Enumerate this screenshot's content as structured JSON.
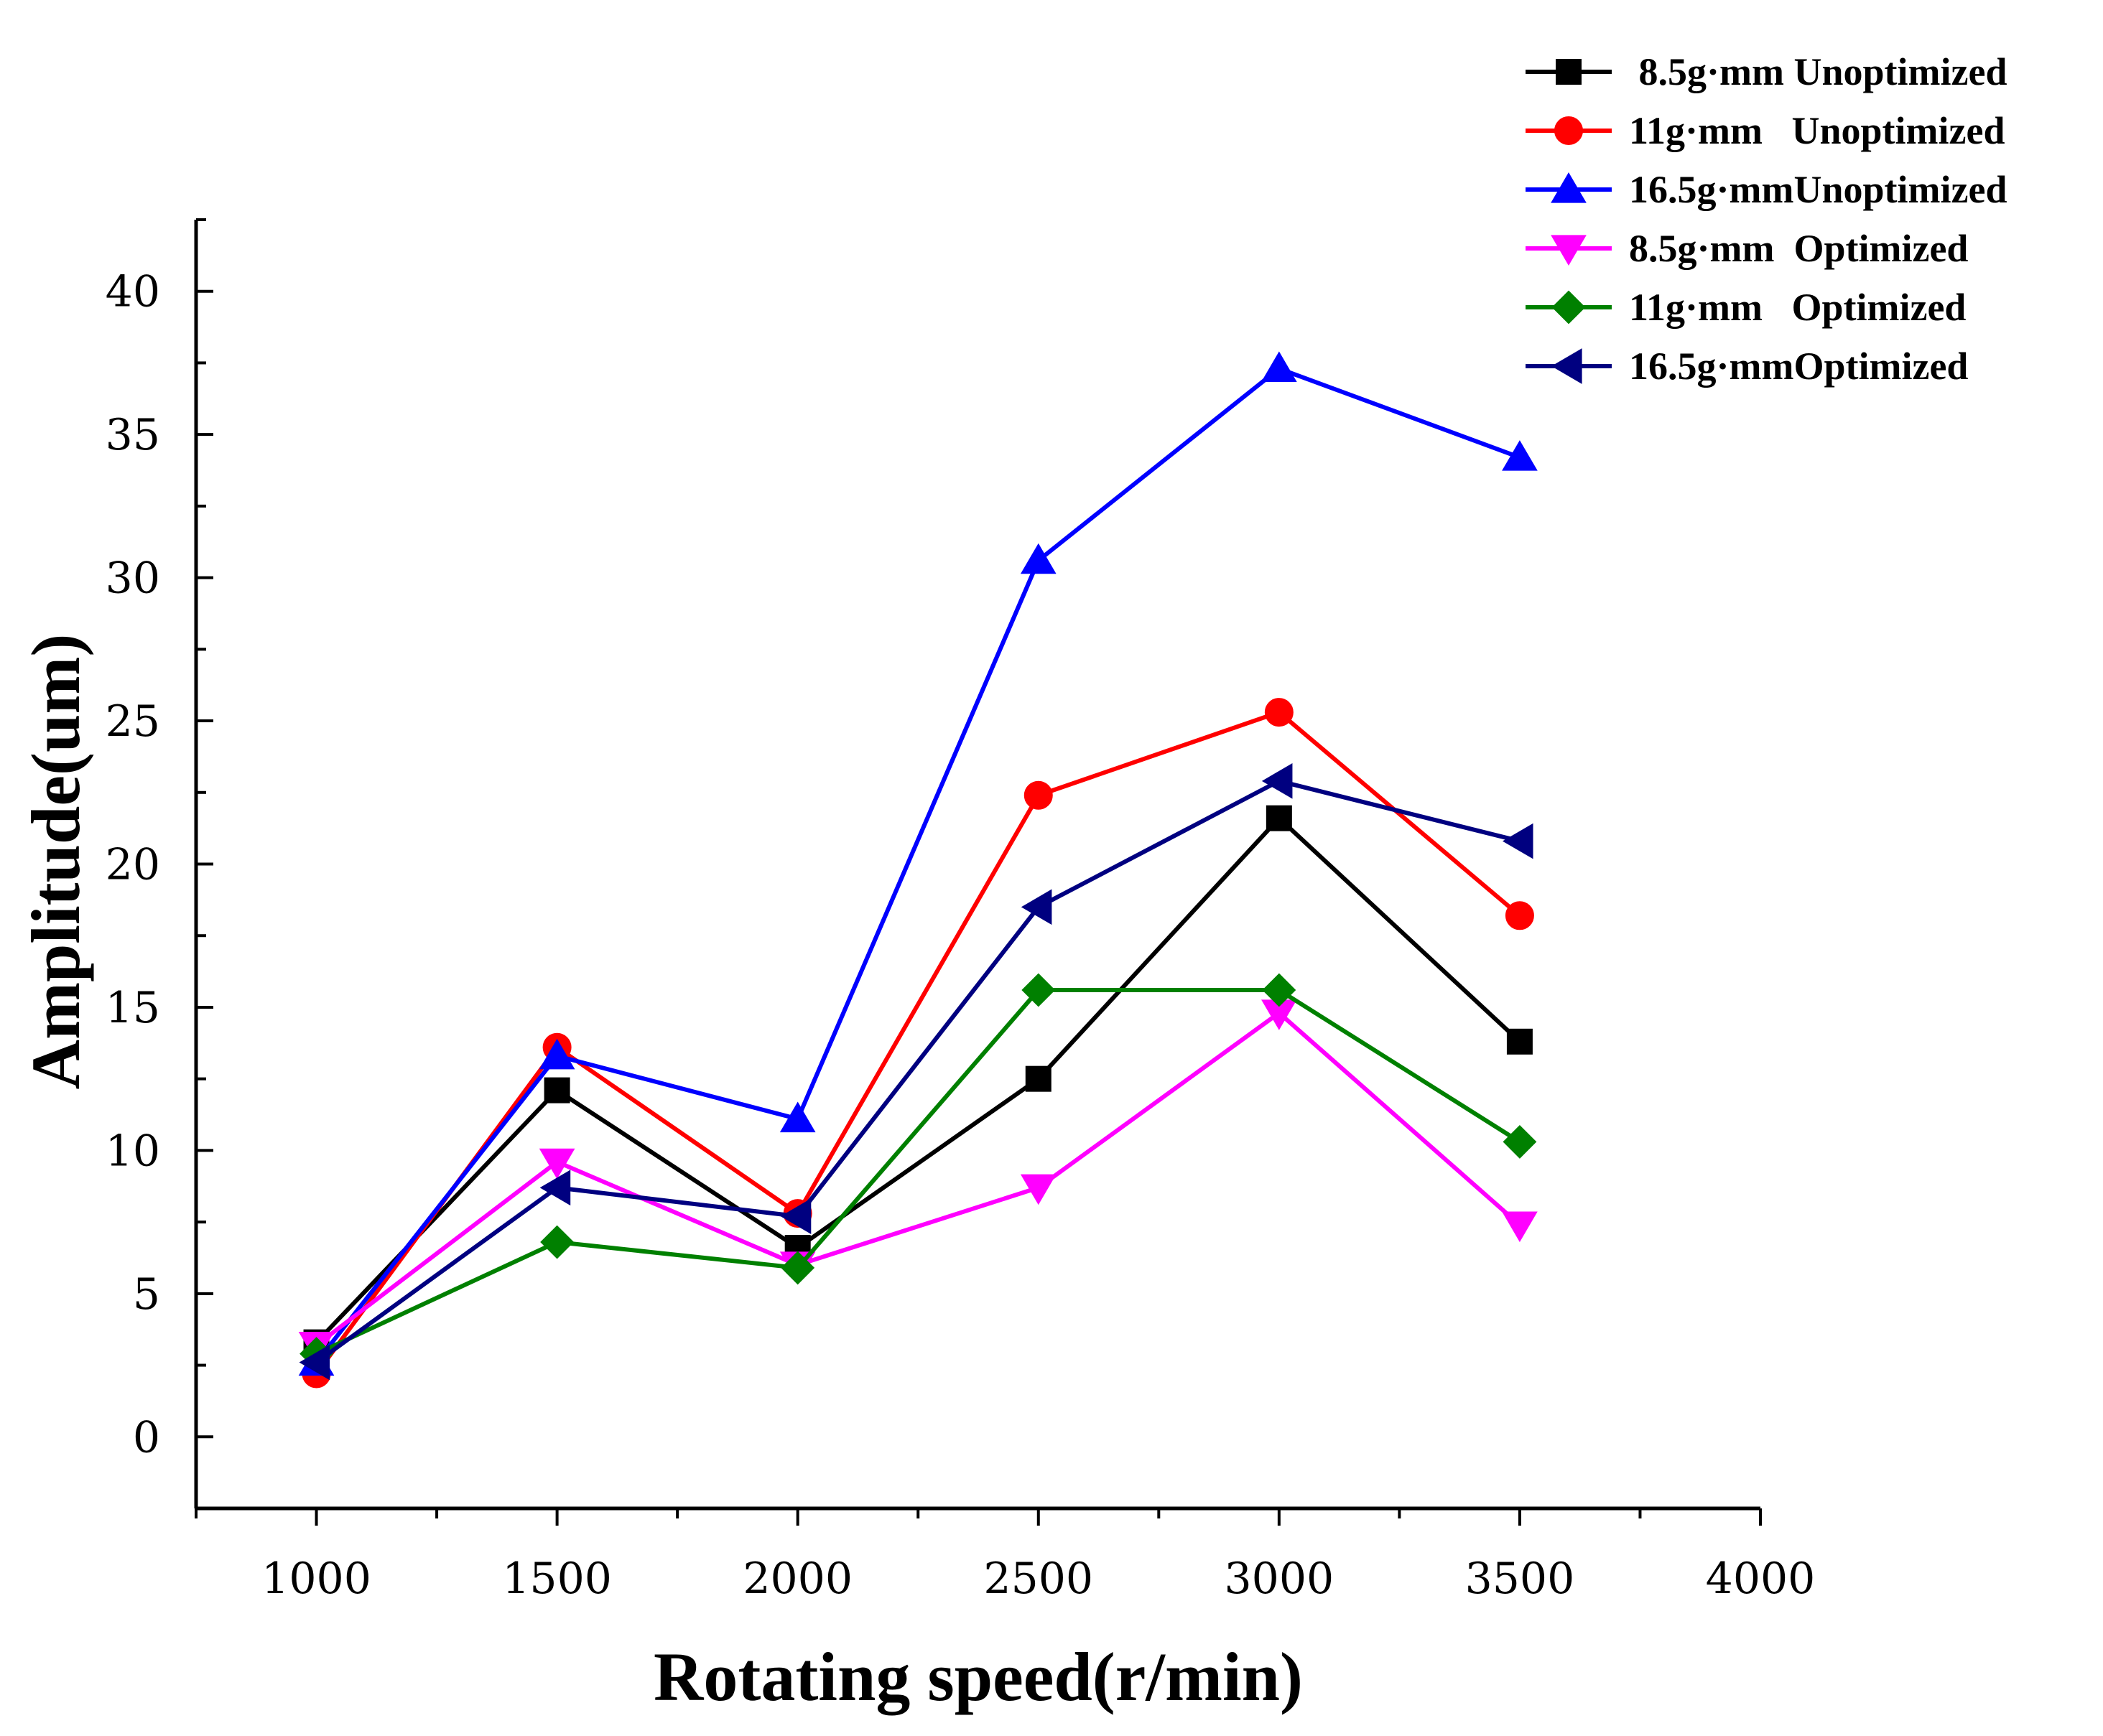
{
  "chart_data": {
    "type": "line",
    "title": "",
    "xlabel": "Rotating speed(r/min)",
    "ylabel": "Amplitude(um)",
    "xlim": [
      750,
      4000
    ],
    "ylim": [
      -2.5,
      42.5
    ],
    "xticks": [
      1000,
      1500,
      2000,
      2500,
      3000,
      3500,
      4000
    ],
    "yticks": [
      0,
      5,
      10,
      15,
      20,
      25,
      30,
      35,
      40
    ],
    "grid": false,
    "legend_position": "top-right",
    "x": [
      1000,
      1500,
      2000,
      2500,
      3000,
      3500
    ],
    "series": [
      {
        "name": " 8.5g·mm Unoptimized",
        "color": "#000000",
        "marker": "square",
        "values": [
          3.3,
          12.1,
          6.6,
          12.5,
          21.6,
          13.8
        ]
      },
      {
        "name": "11g·mm   Unoptimized",
        "color": "#ff0000",
        "marker": "circle",
        "values": [
          2.2,
          13.6,
          7.8,
          22.4,
          25.3,
          18.2
        ]
      },
      {
        "name": "16.5g·mmUnoptimized",
        "color": "#0000ff",
        "marker": "triangle-up",
        "values": [
          2.6,
          13.3,
          11.1,
          30.6,
          37.3,
          34.2
        ]
      },
      {
        "name": "8.5g·mm  Optimized",
        "color": "#ff00ff",
        "marker": "triangle-down",
        "values": [
          3.2,
          9.6,
          6.0,
          8.7,
          14.8,
          7.4
        ]
      },
      {
        "name": "11g·mm   Optimized",
        "color": "#008000",
        "marker": "diamond",
        "values": [
          2.9,
          6.8,
          5.9,
          15.6,
          15.6,
          10.3
        ]
      },
      {
        "name": "16.5g·mmOptimized",
        "color": "#000080",
        "marker": "triangle-left",
        "values": [
          2.6,
          8.7,
          7.7,
          18.5,
          22.9,
          20.8
        ]
      }
    ]
  }
}
